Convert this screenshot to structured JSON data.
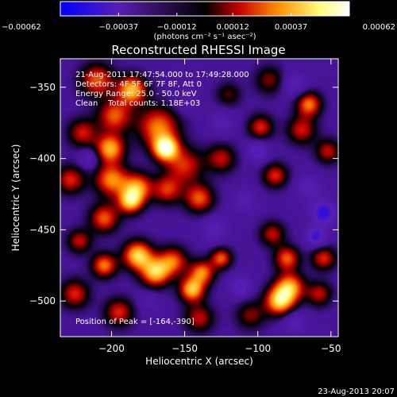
{
  "chart_data": {
    "type": "heatmap",
    "title": "Reconstructed RHESSI Image",
    "xlabel": "Heliocentric X (arcsec)",
    "ylabel": "Heliocentric Y (arcsec)",
    "xlim": [
      -235,
      -45
    ],
    "ylim": [
      -525,
      -330
    ],
    "x_ticks": [
      -200,
      -150,
      -100,
      -50
    ],
    "y_ticks": [
      -350,
      -400,
      -450,
      -500
    ],
    "x_tick_labels": [
      "−200",
      "−150",
      "−100",
      "−50"
    ],
    "y_tick_labels": [
      "−350",
      "−400",
      "−450",
      "−500"
    ],
    "colorbar": {
      "min": -0.00062,
      "max": 0.00062,
      "ticks": [
        -0.00062,
        -0.00037,
        -0.00012,
        0.00012,
        0.00037,
        0.00062
      ],
      "tick_labels": [
        "−0.00062",
        "−0.00037",
        "−0.00012",
        "0.00012",
        "0.00037",
        "0.00062"
      ],
      "units": "(photons cm⁻² s⁻¹ asec⁻²)",
      "colors": [
        "#0000ff",
        "#5a1eb4",
        "#000000",
        "#c80000",
        "#ff8c00",
        "#ffff80",
        "#ffffff"
      ]
    },
    "info_lines": [
      "21-Aug-2011 17:47:54.000 to 17:49:28.000",
      "Detectors: 4F 5F 6F 7F 8F, Att 0",
      "Energy Range: 25.0 - 50.0 keV",
      "Clean    Total counts: 1.18E+03"
    ],
    "peak_label": "Position of Peak = [-164,-390]",
    "sources": [
      {
        "x": -163,
        "y": -393,
        "v": 0.00062,
        "s": 6
      },
      {
        "x": -168,
        "y": -378,
        "v": 0.0004,
        "s": 10
      },
      {
        "x": -150,
        "y": -405,
        "v": 0.0003,
        "s": 9
      },
      {
        "x": -201,
        "y": -393,
        "v": 0.00048,
        "s": 7
      },
      {
        "x": -198,
        "y": -370,
        "v": 0.00036,
        "s": 8
      },
      {
        "x": -220,
        "y": -382,
        "v": 0.00028,
        "s": 7
      },
      {
        "x": -186,
        "y": -352,
        "v": 0.0005,
        "s": 7
      },
      {
        "x": -210,
        "y": -345,
        "v": 0.00036,
        "s": 8
      },
      {
        "x": -200,
        "y": -415,
        "v": 0.00042,
        "s": 8
      },
      {
        "x": -182,
        "y": -420,
        "v": 0.0004,
        "s": 7
      },
      {
        "x": -187,
        "y": -430,
        "v": 0.0005,
        "s": 6
      },
      {
        "x": -162,
        "y": -422,
        "v": 0.0003,
        "s": 7
      },
      {
        "x": -140,
        "y": -428,
        "v": 0.00036,
        "s": 7
      },
      {
        "x": -125,
        "y": -400,
        "v": 0.00026,
        "s": 7
      },
      {
        "x": -98,
        "y": -378,
        "v": 0.0003,
        "s": 6
      },
      {
        "x": -70,
        "y": -380,
        "v": 0.00028,
        "s": 7
      },
      {
        "x": -65,
        "y": -362,
        "v": 0.0004,
        "s": 6
      },
      {
        "x": -52,
        "y": -395,
        "v": 0.00026,
        "s": 6
      },
      {
        "x": -88,
        "y": -412,
        "v": 0.0003,
        "s": 6
      },
      {
        "x": -228,
        "y": -415,
        "v": 0.0003,
        "s": 7
      },
      {
        "x": -205,
        "y": -442,
        "v": 0.00036,
        "s": 7
      },
      {
        "x": -182,
        "y": -468,
        "v": 0.00054,
        "s": 7
      },
      {
        "x": -170,
        "y": -480,
        "v": 0.0005,
        "s": 7
      },
      {
        "x": -158,
        "y": -472,
        "v": 0.00036,
        "s": 7
      },
      {
        "x": -205,
        "y": -475,
        "v": 0.0004,
        "s": 6
      },
      {
        "x": -145,
        "y": -492,
        "v": 0.0005,
        "s": 6
      },
      {
        "x": -138,
        "y": -480,
        "v": 0.0004,
        "s": 6
      },
      {
        "x": -125,
        "y": -470,
        "v": 0.00036,
        "s": 5
      },
      {
        "x": -90,
        "y": -453,
        "v": 0.00026,
        "s": 6
      },
      {
        "x": -80,
        "y": -470,
        "v": 0.00036,
        "s": 6
      },
      {
        "x": -85,
        "y": -500,
        "v": 0.00054,
        "s": 7
      },
      {
        "x": -78,
        "y": -490,
        "v": 0.00044,
        "s": 7
      },
      {
        "x": -55,
        "y": -470,
        "v": 0.0003,
        "s": 6
      },
      {
        "x": -58,
        "y": -495,
        "v": 0.00026,
        "s": 6
      },
      {
        "x": -140,
        "y": -512,
        "v": 0.00026,
        "s": 7
      },
      {
        "x": -105,
        "y": -510,
        "v": 0.0002,
        "s": 7
      },
      {
        "x": -195,
        "y": -508,
        "v": 0.0003,
        "s": 7
      },
      {
        "x": -225,
        "y": -495,
        "v": 0.0003,
        "s": 7
      },
      {
        "x": -222,
        "y": -458,
        "v": 0.00026,
        "s": 6
      },
      {
        "x": -92,
        "y": -345,
        "v": 0.0002,
        "s": 7
      },
      {
        "x": -120,
        "y": -355,
        "v": 0.00016,
        "s": 6
      },
      {
        "x": -110,
        "y": -430,
        "v": -0.0002,
        "s": 6
      },
      {
        "x": -55,
        "y": -438,
        "v": -0.0004,
        "s": 6
      },
      {
        "x": -100,
        "y": -395,
        "v": -0.0003,
        "s": 5
      },
      {
        "x": -65,
        "y": -420,
        "v": -0.00024,
        "s": 6
      },
      {
        "x": -130,
        "y": -450,
        "v": -0.00024,
        "s": 6
      },
      {
        "x": -60,
        "y": -455,
        "v": -0.00036,
        "s": 5
      },
      {
        "x": -215,
        "y": -400,
        "v": -0.00024,
        "s": 5
      },
      {
        "x": -125,
        "y": -375,
        "v": -0.0002,
        "s": 6
      },
      {
        "x": -75,
        "y": -348,
        "v": -0.00024,
        "s": 6
      },
      {
        "x": -112,
        "y": -490,
        "v": -0.0003,
        "s": 5
      },
      {
        "x": -150,
        "y": -360,
        "v": -0.00016,
        "s": 6
      },
      {
        "x": -75,
        "y": -515,
        "v": -0.00024,
        "s": 6
      },
      {
        "x": -175,
        "y": -500,
        "v": -0.00016,
        "s": 5
      }
    ]
  },
  "footer": {
    "timestamp": "23-Aug-2013 20:07"
  }
}
